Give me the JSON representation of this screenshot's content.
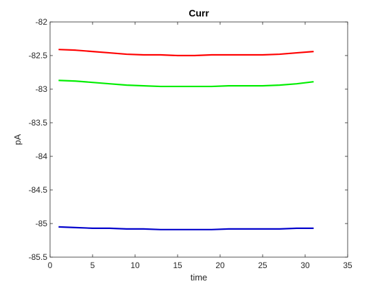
{
  "chart_data": {
    "type": "line",
    "title": "Curr",
    "xlabel": "time",
    "ylabel": "pA",
    "xlim": [
      0,
      35
    ],
    "ylim": [
      -85.5,
      -82
    ],
    "xticks": [
      0,
      5,
      10,
      15,
      20,
      25,
      30,
      35
    ],
    "yticks": [
      -82,
      -82.5,
      -83,
      -83.5,
      -84,
      -84.5,
      -85,
      -85.5
    ],
    "grid": false,
    "legend": "none",
    "x": [
      1,
      3,
      5,
      7,
      9,
      11,
      13,
      15,
      17,
      19,
      21,
      23,
      25,
      27,
      29,
      31
    ],
    "series": [
      {
        "color": "#ff0000",
        "values": [
          -82.41,
          -82.42,
          -82.44,
          -82.46,
          -82.48,
          -82.49,
          -82.49,
          -82.5,
          -82.5,
          -82.49,
          -82.49,
          -82.49,
          -82.49,
          -82.48,
          -82.46,
          -82.44
        ]
      },
      {
        "color": "#00ee00",
        "values": [
          -82.87,
          -82.88,
          -82.9,
          -82.92,
          -82.94,
          -82.95,
          -82.96,
          -82.96,
          -82.96,
          -82.96,
          -82.95,
          -82.95,
          -82.95,
          -82.94,
          -82.92,
          -82.89
        ]
      },
      {
        "color": "#0000cc",
        "values": [
          -85.05,
          -85.06,
          -85.07,
          -85.07,
          -85.08,
          -85.08,
          -85.09,
          -85.09,
          -85.09,
          -85.09,
          -85.08,
          -85.08,
          -85.08,
          -85.08,
          -85.07,
          -85.07
        ]
      }
    ]
  }
}
